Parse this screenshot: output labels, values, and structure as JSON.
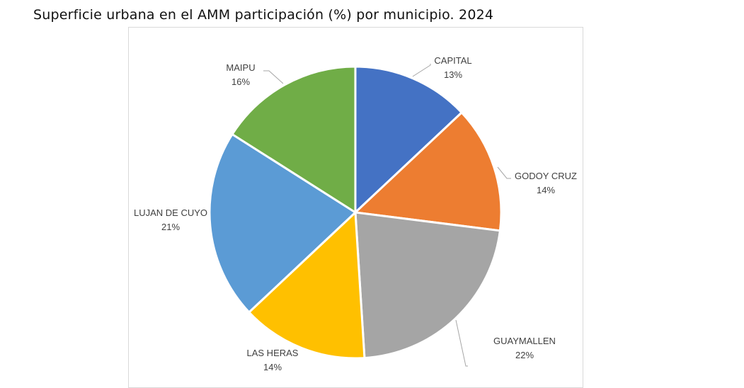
{
  "title": "Superficie urbana en el AMM participación (%) por municipio. 2024",
  "chart_data": {
    "type": "pie",
    "title": "Superficie urbana en el AMM participación (%) por municipio. 2024",
    "slices": [
      {
        "label": "CAPITAL",
        "value": 13,
        "value_label": "13%",
        "color": "#4472C4"
      },
      {
        "label": "GODOY CRUZ",
        "value": 14,
        "value_label": "14%",
        "color": "#ED7D31"
      },
      {
        "label": "GUAYMALLEN",
        "value": 22,
        "value_label": "22%",
        "color": "#A5A5A5"
      },
      {
        "label": "LAS HERAS",
        "value": 14,
        "value_label": "14%",
        "color": "#FFC000"
      },
      {
        "label": "LUJAN DE CUYO",
        "value": 21,
        "value_label": "21%",
        "color": "#5B9BD5"
      },
      {
        "label": "MAIPU",
        "value": 16,
        "value_label": "16%",
        "color": "#70AD47"
      }
    ],
    "legend": "none",
    "data_labels": "outside with leader lines"
  }
}
